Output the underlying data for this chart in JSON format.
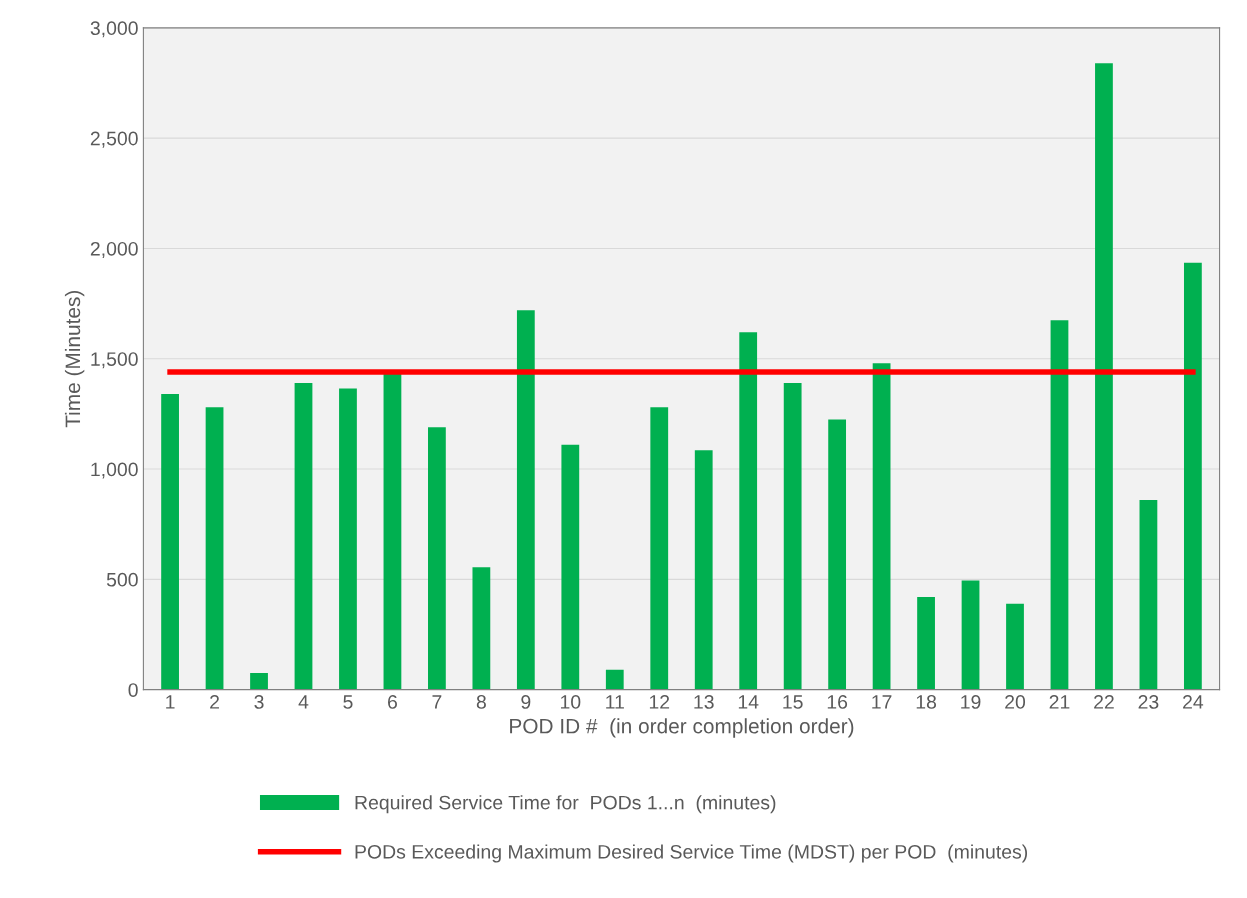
{
  "chart_data": {
    "type": "bar",
    "xlabel": "POD ID #  (in order completion order)",
    "ylabel": "Time (Minutes)",
    "categories": [
      "1",
      "2",
      "3",
      "4",
      "5",
      "6",
      "7",
      "8",
      "9",
      "10",
      "11",
      "12",
      "13",
      "14",
      "15",
      "16",
      "17",
      "18",
      "19",
      "20",
      "21",
      "22",
      "23",
      "24"
    ],
    "series": [
      {
        "name": "Required Service Time for  PODs 1...n  (minutes)",
        "color": "#00b050",
        "values": [
          1340,
          1280,
          75,
          1390,
          1365,
          1435,
          1190,
          555,
          1720,
          1110,
          90,
          1280,
          1085,
          1620,
          1390,
          1225,
          1480,
          420,
          495,
          390,
          1675,
          2840,
          860,
          1935
        ]
      },
      {
        "name": "PODs Exceeding Maximum Desired Service Time (MDST) per POD  (minutes)",
        "color": "#ff0000",
        "type": "line",
        "values": [
          1440,
          1440,
          1440,
          1440,
          1440,
          1440,
          1440,
          1440,
          1440,
          1440,
          1440,
          1440,
          1440,
          1440,
          1440,
          1440,
          1440,
          1440,
          1440,
          1440,
          1440,
          1440,
          1440,
          1440
        ]
      }
    ],
    "ylim": [
      0,
      3000
    ],
    "yticks": [
      {
        "value": 0,
        "label": "0"
      },
      {
        "value": 500,
        "label": "500"
      },
      {
        "value": 1000,
        "label": "1,000"
      },
      {
        "value": 1500,
        "label": "1,500"
      },
      {
        "value": 2000,
        "label": "2,000"
      },
      {
        "value": 2500,
        "label": "2,500"
      },
      {
        "value": 3000,
        "label": "3,000"
      }
    ],
    "grid": "y",
    "legend": "bottom",
    "marker": "none"
  }
}
